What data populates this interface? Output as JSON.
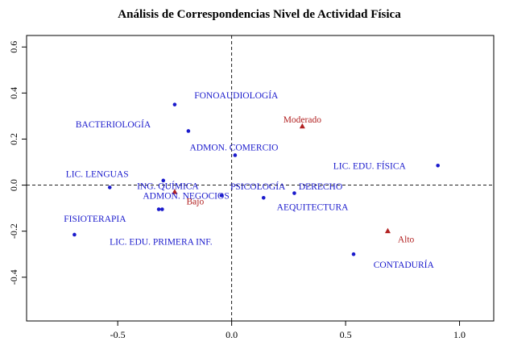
{
  "chart_data": {
    "type": "scatter",
    "title": "Análisis de Correspondencias Nivel de Actividad Física",
    "xlabel": "",
    "ylabel": "",
    "xlim": [
      -0.9,
      1.15
    ],
    "ylim": [
      -0.59,
      0.65
    ],
    "x_ticks": [
      -0.5,
      0.0,
      0.5,
      1.0
    ],
    "x_tick_labels": [
      "-0.5",
      "0.0",
      "0.5",
      "1.0"
    ],
    "y_ticks": [
      -0.4,
      -0.2,
      0.0,
      0.2,
      0.4,
      0.6
    ],
    "y_tick_labels": [
      "-0.4",
      "-0.2",
      "0.0",
      "0.2",
      "0.4",
      "0.6"
    ],
    "reference_lines": {
      "x": 0,
      "y": 0,
      "style": "dashed"
    },
    "grid": false,
    "colors": {
      "programs": "#1a1acc",
      "levels": "#b22222",
      "axis": "#000000"
    },
    "series": [
      {
        "marker": "dot",
        "color": "#1a1acc",
        "points": [
          {
            "label": "FONOAUDIOLOGÍA",
            "x": -0.25,
            "y": 0.35
          },
          {
            "label": "BACTERIOLOGÍA",
            "x": -0.19,
            "y": 0.235
          },
          {
            "label": "ADMON. COMERCIO",
            "x": 0.015,
            "y": 0.13
          },
          {
            "label": "LIC. EDU. FÍSICA",
            "x": 0.905,
            "y": 0.085
          },
          {
            "label": "LIC. LENGUAS",
            "x": -0.535,
            "y": -0.01
          },
          {
            "label": "ING. QUÍMICA",
            "x": -0.3,
            "y": 0.02
          },
          {
            "label": "ADMON. NEGOCIOS",
            "x": -0.045,
            "y": -0.045
          },
          {
            "label": "PSICOLOGÍA",
            "x": 0.14,
            "y": -0.055
          },
          {
            "label": "DERECHO",
            "x": 0.275,
            "y": -0.035
          },
          {
            "label": "AEQUITECTURA",
            "x": -0.32,
            "y": -0.105
          },
          {
            "label": "FISIOTERAPIA",
            "x": -0.69,
            "y": -0.215
          },
          {
            "label": "LIC. EDU. PRIMERA INF.",
            "x": -0.305,
            "y": -0.105
          },
          {
            "label": "CONTADURÍA",
            "x": 0.535,
            "y": -0.3
          }
        ]
      },
      {
        "marker": "triangle",
        "color": "#b22222",
        "points": [
          {
            "label": "Moderado",
            "x": 0.31,
            "y": 0.255
          },
          {
            "label": "Bajo",
            "x": -0.25,
            "y": -0.03
          },
          {
            "label": "Alto",
            "x": 0.685,
            "y": -0.2
          }
        ]
      }
    ],
    "text_labels": [
      {
        "text": "FONOAUDIOLOGÍA",
        "x": 0.02,
        "y": 0.39,
        "color": "#1a1acc"
      },
      {
        "text": "BACTERIOLOGÍA",
        "x": -0.52,
        "y": 0.265,
        "color": "#1a1acc"
      },
      {
        "text": "ADMON. COMERCIO",
        "x": 0.01,
        "y": 0.165,
        "color": "#1a1acc"
      },
      {
        "text": "LIC. EDU. FÍSICA",
        "x": 0.605,
        "y": 0.085,
        "color": "#1a1acc"
      },
      {
        "text": "LIC. LENGUAS",
        "x": -0.59,
        "y": 0.05,
        "color": "#1a1acc"
      },
      {
        "text": "ING. QUÍMICA",
        "x": -0.28,
        "y": -0.003,
        "color": "#1a1acc"
      },
      {
        "text": "ADMON. NEGOCIOS",
        "x": -0.2,
        "y": -0.045,
        "color": "#1a1acc"
      },
      {
        "text": "PSICOLOGÍA",
        "x": 0.115,
        "y": -0.005,
        "color": "#1a1acc"
      },
      {
        "text": "DERECHO",
        "x": 0.39,
        "y": -0.005,
        "color": "#1a1acc"
      },
      {
        "text": "AEQUITECTURA",
        "x": 0.355,
        "y": -0.095,
        "color": "#1a1acc"
      },
      {
        "text": "FISIOTERAPIA",
        "x": -0.6,
        "y": -0.145,
        "color": "#1a1acc"
      },
      {
        "text": "LIC. EDU. PRIMERA INF.",
        "x": -0.31,
        "y": -0.245,
        "color": "#1a1acc"
      },
      {
        "text": "CONTADURÍA",
        "x": 0.755,
        "y": -0.345,
        "color": "#1a1acc"
      },
      {
        "text": "Moderado",
        "x": 0.31,
        "y": 0.285,
        "color": "#b22222"
      },
      {
        "text": "Bajo",
        "x": -0.16,
        "y": -0.07,
        "color": "#b22222"
      },
      {
        "text": "Alto",
        "x": 0.765,
        "y": -0.235,
        "color": "#b22222"
      }
    ]
  }
}
